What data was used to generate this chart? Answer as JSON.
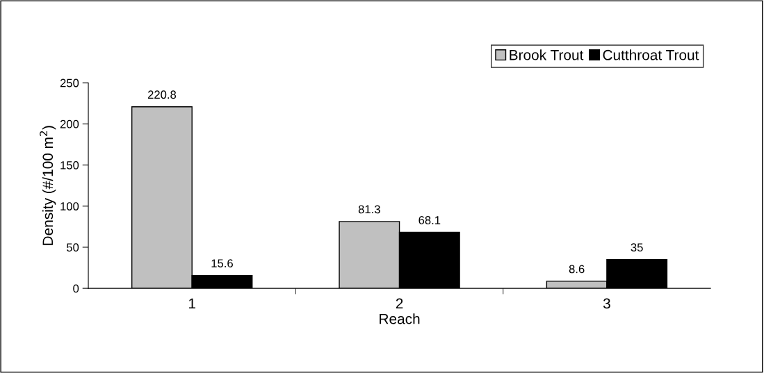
{
  "chart_data": {
    "type": "bar",
    "xlabel": "Reach",
    "ylabel": "Density (#/100 m$^{2}$)",
    "categories": [
      "1",
      "2",
      "3"
    ],
    "series": [
      {
        "name": "Brook Trout",
        "color": "#c0c0c0",
        "values": [
          220.8,
          81.3,
          8.6
        ]
      },
      {
        "name": "Cutthroat Trout",
        "color": "#000000",
        "values": [
          15.6,
          68.1,
          35
        ]
      }
    ],
    "ylim": [
      0,
      250
    ],
    "yticks": [
      0,
      50,
      100,
      150,
      200,
      250
    ],
    "data_labels": true,
    "legend": "top right",
    "grid": false
  }
}
